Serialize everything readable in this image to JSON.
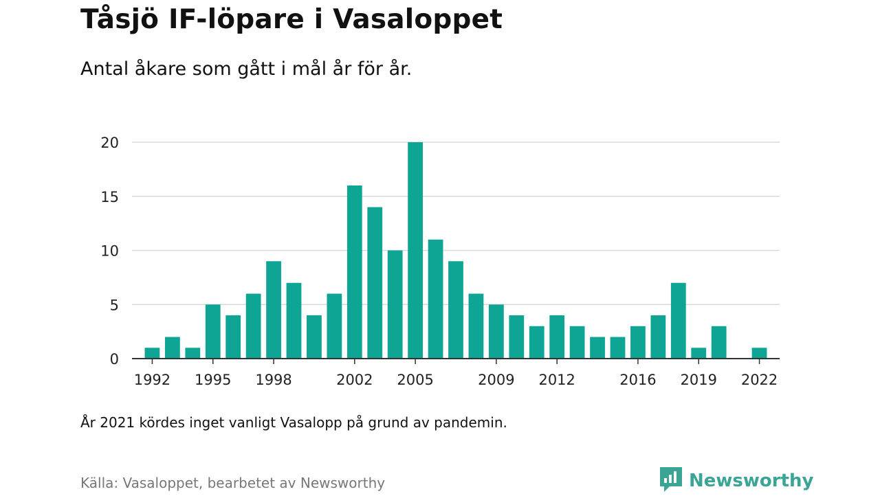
{
  "header": {
    "title": "Tåsjö IF-löpare i Vasaloppet",
    "subtitle": "Antal åkare som gått i mål år för år."
  },
  "footer": {
    "note": "År 2021 kördes inget vanligt Vasalopp på grund av pandemin.",
    "source": "Källa: Vasaloppet, bearbetet av Newsworthy",
    "brand": "Newsworthy",
    "brand_icon": "newsworthy-logo-icon"
  },
  "colors": {
    "bar": "#0fa595",
    "grid": "#d9d9d9",
    "axis": "#333333",
    "brand": "#3aa495"
  },
  "chart_data": {
    "type": "bar",
    "x": [
      1992,
      1993,
      1994,
      1995,
      1996,
      1997,
      1998,
      1999,
      2000,
      2001,
      2002,
      2003,
      2004,
      2005,
      2006,
      2007,
      2008,
      2009,
      2010,
      2011,
      2012,
      2013,
      2014,
      2015,
      2016,
      2017,
      2018,
      2019,
      2020,
      2022
    ],
    "values": [
      1,
      2,
      1,
      5,
      4,
      6,
      9,
      7,
      4,
      6,
      16,
      14,
      10,
      20,
      11,
      9,
      6,
      5,
      4,
      3,
      4,
      3,
      2,
      2,
      3,
      4,
      7,
      1,
      3,
      1
    ],
    "xticks": [
      1992,
      1995,
      1998,
      2002,
      2005,
      2009,
      2012,
      2016,
      2019,
      2022
    ],
    "yticks": [
      0,
      5,
      10,
      15,
      20
    ],
    "xlim": [
      1991,
      2023
    ],
    "ylim": [
      0,
      20
    ],
    "grid": true
  }
}
